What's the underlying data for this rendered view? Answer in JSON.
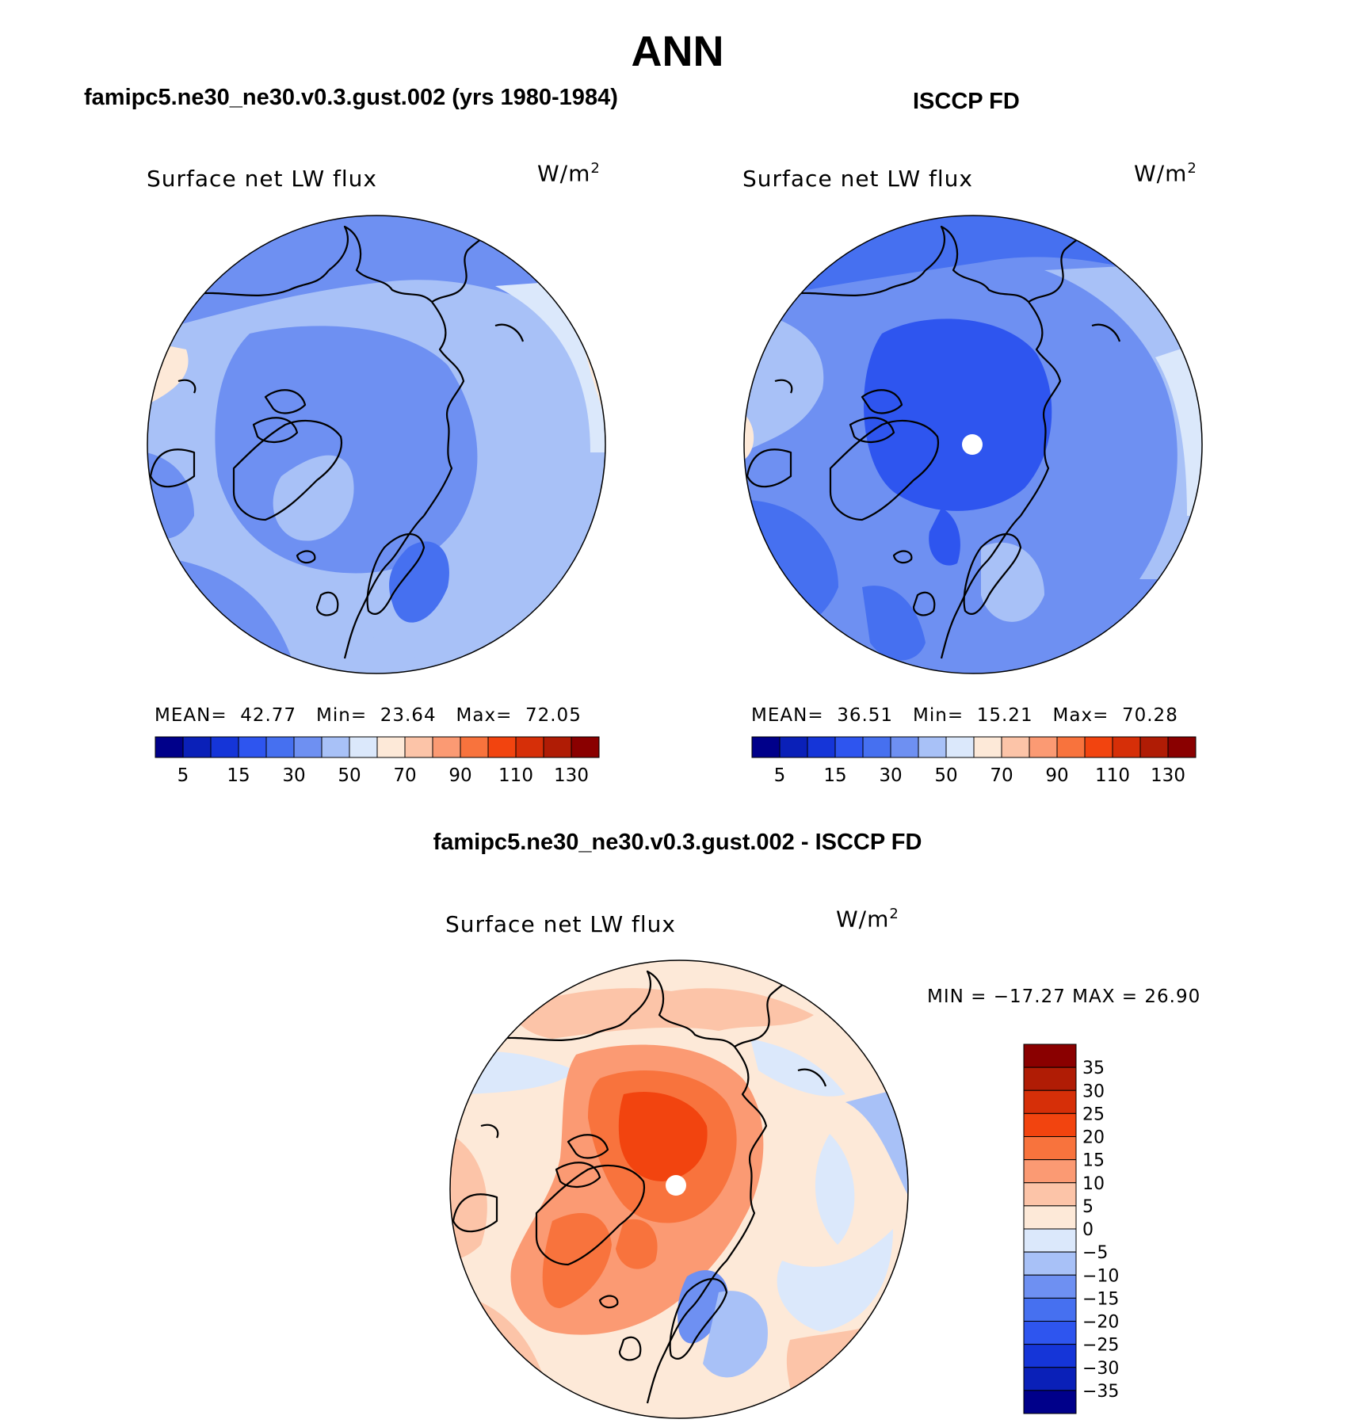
{
  "title": "ANN",
  "panels": [
    {
      "title": "famipc5.ne30_ne30.v0.3.gust.002 (yrs 1980-1984)",
      "variable": "Surface net LW flux",
      "units": "W/m",
      "units_sup": "2",
      "stats": {
        "mean_label": "MEAN=",
        "mean": "42.77",
        "min_label": "Min=",
        "min": "23.64",
        "max_label": "Max=",
        "max": "72.05"
      },
      "colorbar": {
        "colors": [
          "#00008a",
          "#0a20b8",
          "#1535d8",
          "#2e55ef",
          "#4670f0",
          "#6e90f2",
          "#a8c1f7",
          "#dbe8fb",
          "#fde9d8",
          "#fcc4a8",
          "#fb9a73",
          "#f8733d",
          "#f2440f",
          "#d62f08",
          "#b01c05",
          "#8a0000"
        ],
        "tick_labels": [
          "5",
          "15",
          "30",
          "50",
          "70",
          "90",
          "110",
          "130"
        ]
      }
    },
    {
      "title": "ISCCP FD",
      "variable": "Surface net LW flux",
      "units": "W/m",
      "units_sup": "2",
      "stats": {
        "mean_label": "MEAN=",
        "mean": "36.51",
        "min_label": "Min=",
        "min": "15.21",
        "max_label": "Max=",
        "max": "70.28"
      },
      "colorbar": {
        "colors": [
          "#00008a",
          "#0a20b8",
          "#1535d8",
          "#2e55ef",
          "#4670f0",
          "#6e90f2",
          "#a8c1f7",
          "#dbe8fb",
          "#fde9d8",
          "#fcc4a8",
          "#fb9a73",
          "#f8733d",
          "#f2440f",
          "#d62f08",
          "#b01c05",
          "#8a0000"
        ],
        "tick_labels": [
          "5",
          "15",
          "30",
          "50",
          "70",
          "90",
          "110",
          "130"
        ]
      }
    }
  ],
  "difference": {
    "title": "famipc5.ne30_ne30.v0.3.gust.002 - ISCCP FD",
    "variable": "Surface net LW flux",
    "units": "W/m",
    "units_sup": "2",
    "minmax": "MIN = −17.27 MAX =  26.90",
    "colorbar": {
      "colors": [
        "#8a0000",
        "#b01c05",
        "#d62f08",
        "#f2440f",
        "#f8733d",
        "#fb9a73",
        "#fcc4a8",
        "#fde9d8",
        "#dbe8fb",
        "#a8c1f7",
        "#6e90f2",
        "#4670f0",
        "#2e55ef",
        "#1535d8",
        "#0a20b8",
        "#00008a"
      ],
      "tick_labels": [
        "35",
        "30",
        "25",
        "20",
        "15",
        "10",
        "5",
        "0",
        "−5",
        "−10",
        "−15",
        "−20",
        "−25",
        "−30",
        "−35"
      ]
    }
  }
}
